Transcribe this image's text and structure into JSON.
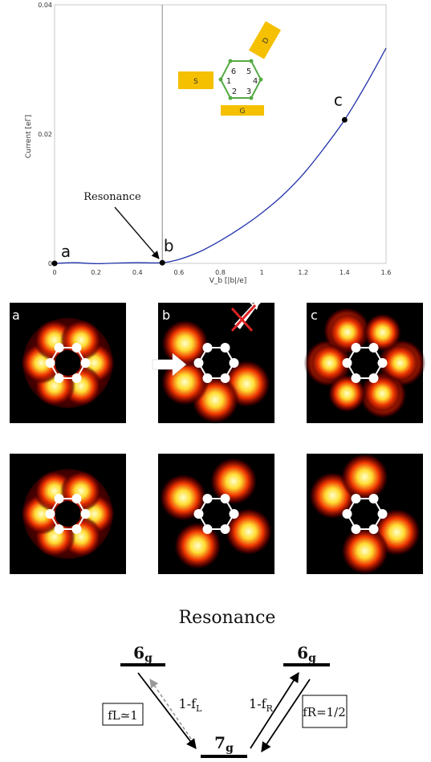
{
  "chart_data": {
    "type": "line",
    "xlabel": "V_b [|b|/e]",
    "ylabel": "Current [eΓ]",
    "xlim": [
      0,
      1.6
    ],
    "ylim": [
      0,
      0.04
    ],
    "x_ticks": [
      "0",
      "0.2",
      "0.4",
      "0.6",
      "0.8",
      "1",
      "1.2",
      "1.4",
      "1.6"
    ],
    "y_ticks": [
      "0",
      "0.02",
      "0.04"
    ],
    "resonance_x": 0.52,
    "series": [
      {
        "x": [
          0,
          0.1,
          0.2,
          0.3,
          0.4,
          0.52,
          0.6,
          0.7,
          0.8,
          0.9,
          1.0,
          1.1,
          1.2,
          1.3,
          1.4,
          1.5,
          1.6
        ],
        "y": [
          0,
          0.0001,
          -5e-05,
          5e-05,
          0.0001,
          0.0001,
          0.0006,
          0.0018,
          0.0035,
          0.0055,
          0.0078,
          0.0105,
          0.0138,
          0.0178,
          0.0222,
          0.0275,
          0.0333
        ]
      }
    ],
    "points": [
      {
        "label": "a",
        "x": 0,
        "y": 0
      },
      {
        "label": "b",
        "x": 0.52,
        "y": 0.0001
      },
      {
        "label": "c",
        "x": 1.4,
        "y": 0.0222
      }
    ],
    "annotation": "Resonance"
  },
  "inset": {
    "source": "S",
    "drain": "D",
    "gate": "G",
    "site_numbers": [
      "6",
      "5",
      "1",
      "4",
      "2",
      "3"
    ]
  },
  "panels": {
    "labels": [
      "a",
      "b",
      "c"
    ]
  },
  "levels": {
    "title": "Resonance",
    "left_top": "6g",
    "right_top": "6g",
    "bottom": "7g",
    "left_rate": "1-fL",
    "right_rate": "1-fR",
    "fL_box": "fL≃1",
    "fR_box": "fR=1/2"
  },
  "colors": {
    "curve": "#2233aa",
    "inset_ring": "#55aa44",
    "electrode": "#f5c000",
    "cross": "#dd2222"
  }
}
